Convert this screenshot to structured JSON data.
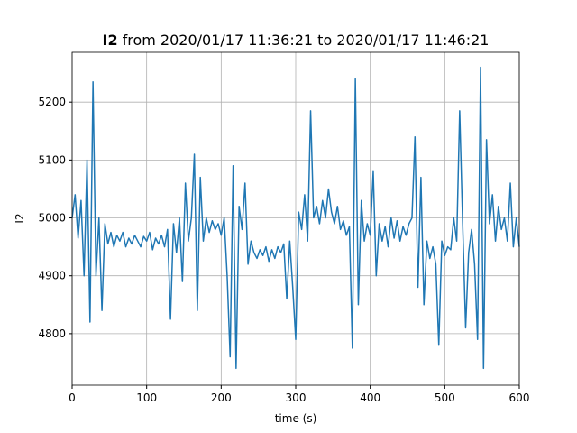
{
  "chart_data": {
    "type": "line",
    "title_prefix": "I2",
    "title": "from 2020/01/17 11:36:21 to 2020/01/17 11:46:21",
    "xlabel": "time (s)",
    "ylabel": "I2",
    "xlim": [
      0,
      600
    ],
    "xticks": [
      0,
      100,
      200,
      300,
      400,
      500,
      600
    ],
    "ylim": [
      4711,
      5286
    ],
    "yticks": [
      4800,
      4900,
      5000,
      5100,
      5200
    ],
    "grid": true,
    "series": [
      {
        "color": "#1f77b4",
        "x": [
          0,
          4,
          8,
          12,
          16,
          20,
          24,
          28,
          32,
          36,
          40,
          44,
          48,
          52,
          56,
          60,
          64,
          68,
          72,
          76,
          80,
          84,
          88,
          92,
          96,
          100,
          104,
          108,
          112,
          116,
          120,
          124,
          128,
          132,
          136,
          140,
          144,
          148,
          152,
          156,
          160,
          164,
          168,
          172,
          176,
          180,
          184,
          188,
          192,
          196,
          200,
          204,
          208,
          212,
          216,
          220,
          224,
          228,
          232,
          236,
          240,
          244,
          248,
          252,
          256,
          260,
          264,
          268,
          272,
          276,
          280,
          284,
          288,
          292,
          296,
          300,
          304,
          308,
          312,
          316,
          320,
          324,
          328,
          332,
          336,
          340,
          344,
          348,
          352,
          356,
          360,
          364,
          368,
          372,
          376,
          380,
          384,
          388,
          392,
          396,
          400,
          404,
          408,
          412,
          416,
          420,
          424,
          428,
          432,
          436,
          440,
          444,
          448,
          452,
          456,
          460,
          464,
          468,
          472,
          476,
          480,
          484,
          488,
          492,
          496,
          500,
          504,
          508,
          512,
          516,
          520,
          524,
          528,
          532,
          536,
          540,
          544,
          548,
          552,
          556,
          560,
          564,
          568,
          572,
          576,
          580,
          584,
          588,
          592,
          596,
          600
        ],
        "values": [
          5000,
          5040,
          4965,
          5030,
          4900,
          5100,
          4820,
          5235,
          4900,
          5000,
          4840,
          4990,
          4955,
          4975,
          4950,
          4970,
          4960,
          4975,
          4950,
          4965,
          4955,
          4970,
          4960,
          4950,
          4968,
          4960,
          4975,
          4945,
          4965,
          4955,
          4970,
          4950,
          4980,
          4825,
          4990,
          4940,
          5000,
          4890,
          5060,
          4960,
          5000,
          5110,
          4840,
          5070,
          4960,
          5000,
          4975,
          4995,
          4980,
          4990,
          4970,
          5000,
          4900,
          4760,
          5090,
          4740,
          5020,
          4980,
          5060,
          4920,
          4960,
          4940,
          4930,
          4945,
          4935,
          4950,
          4925,
          4945,
          4930,
          4950,
          4940,
          4955,
          4860,
          4960,
          4880,
          4790,
          5010,
          4980,
          5040,
          4960,
          5185,
          5000,
          5020,
          4990,
          5030,
          5000,
          5050,
          5010,
          4990,
          5020,
          4980,
          4995,
          4970,
          4985,
          4775,
          5240,
          4850,
          5030,
          4960,
          4990,
          4970,
          5080,
          4900,
          4990,
          4960,
          4985,
          4950,
          5000,
          4965,
          4995,
          4960,
          4985,
          4970,
          4990,
          5000,
          5140,
          4880,
          5070,
          4850,
          4960,
          4930,
          4950,
          4920,
          4780,
          4960,
          4935,
          4950,
          4945,
          5000,
          4960,
          5185,
          4990,
          4810,
          4940,
          4980,
          4920,
          4790,
          5260,
          4740,
          5135,
          4990,
          5040,
          4960,
          5020,
          4980,
          5000,
          4960,
          5060,
          4950,
          5000,
          4950
        ]
      }
    ]
  }
}
